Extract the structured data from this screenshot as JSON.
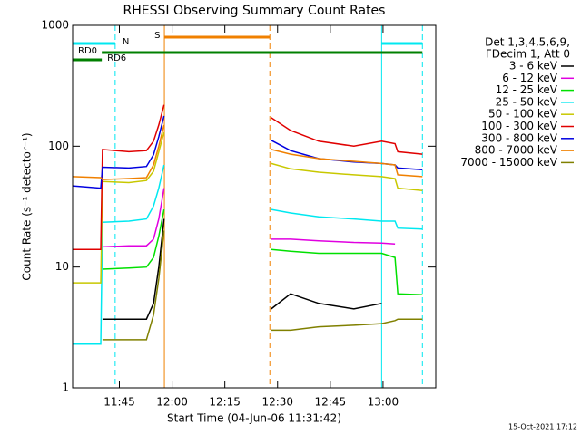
{
  "chart_data": {
    "type": "line",
    "title": "RHESSI Observing Summary Count Rates",
    "xlabel": "Start Time (04-Jun-06 11:31:42)",
    "ylabel": "Count Rate (s⁻¹ detector⁻¹)",
    "legend_header": [
      "Det 1,3,4,5,6,9,",
      "FDecim 1, Att 0"
    ],
    "footer": "15-Oct-2021 17:12",
    "log_y": true,
    "xlim": [
      0,
      103.3
    ],
    "ylim": [
      1,
      1000
    ],
    "xticks": [
      {
        "value": 13.3,
        "label": "11:45"
      },
      {
        "value": 28.3,
        "label": "12:00"
      },
      {
        "value": 43.3,
        "label": "12:15"
      },
      {
        "value": 58.3,
        "label": "12:30"
      },
      {
        "value": 73.3,
        "label": "12:45"
      },
      {
        "value": 88.3,
        "label": "13:00"
      }
    ],
    "yticks": [
      1,
      10,
      100,
      1000
    ],
    "x": [
      0,
      8,
      8.5,
      16,
      21,
      23,
      24.5,
      26,
      40,
      56.5,
      62,
      70,
      80,
      87.9,
      91.7,
      92.5,
      99.5
    ],
    "series": [
      {
        "name": "3 - 6 keV",
        "color": "#000000",
        "values": [
          null,
          null,
          3.7,
          3.7,
          3.7,
          5,
          10,
          25,
          null,
          4.5,
          6,
          5,
          4.5,
          5,
          null,
          null,
          null
        ]
      },
      {
        "name": "6 - 12 keV",
        "color": "#e000e0",
        "values": [
          null,
          null,
          14.7,
          15,
          15,
          17,
          25,
          45,
          null,
          17,
          17,
          16.5,
          16,
          15.8,
          15.5,
          null,
          null
        ]
      },
      {
        "name": "12 - 25 keV",
        "color": "#00e000",
        "values": [
          null,
          null,
          9.6,
          9.8,
          10,
          12,
          18,
          30,
          null,
          14,
          13.5,
          13,
          13,
          13,
          12,
          6,
          5.9
        ]
      },
      {
        "name": "25 - 50 keV",
        "color": "#00e8f0",
        "values": [
          2.3,
          2.3,
          23.5,
          24,
          25,
          32,
          45,
          70,
          null,
          30,
          28,
          26,
          25,
          24,
          24,
          21,
          20.6
        ]
      },
      {
        "name": "50 - 100 keV",
        "color": "#c8c800",
        "values": [
          7.4,
          7.4,
          51,
          50,
          52,
          62,
          90,
          130,
          null,
          72,
          65,
          61,
          58,
          56,
          54,
          45,
          43
        ]
      },
      {
        "name": "100 - 300 keV",
        "color": "#e00000",
        "values": [
          14,
          14,
          94,
          90,
          92,
          110,
          150,
          220,
          null,
          172,
          135,
          110,
          100,
          110,
          105,
          90,
          86
        ]
      },
      {
        "name": "300 - 800 keV",
        "color": "#0000e0",
        "values": [
          47,
          45,
          67,
          66,
          68,
          85,
          120,
          178,
          null,
          112,
          92,
          79,
          74,
          72,
          70,
          66,
          64
        ]
      },
      {
        "name": "800 - 7000 keV",
        "color": "#f08000",
        "values": [
          56,
          55,
          53,
          54,
          55,
          70,
          100,
          150,
          null,
          94,
          86,
          79,
          75,
          72,
          70,
          58,
          56
        ]
      },
      {
        "name": "7000 - 15000 keV",
        "color": "#808000",
        "values": [
          null,
          null,
          2.5,
          2.5,
          2.5,
          4,
          8,
          20,
          null,
          3,
          3,
          3.2,
          3.3,
          3.4,
          3.6,
          3.7,
          3.7
        ]
      }
    ],
    "flags": [
      {
        "label": "S",
        "color": "#f08000",
        "intervals": [
          [
            26.1,
            56.1
          ]
        ]
      },
      {
        "label": "N",
        "color": "#00e8f0",
        "intervals": [
          [
            0,
            12.1
          ],
          [
            87.9,
            99.5
          ]
        ]
      },
      {
        "label": "RD0",
        "color": "#008000",
        "intervals": [
          [
            8.3,
            99.5
          ]
        ]
      },
      {
        "label": "RD6",
        "color": "#008000",
        "intervals": [
          [
            0,
            8.3
          ]
        ]
      }
    ],
    "vlines": [
      {
        "x": 0,
        "color": "#00e8f0",
        "dashed": false
      },
      {
        "x": 12.1,
        "color": "#00e8f0",
        "dashed": true
      },
      {
        "x": 26.1,
        "color": "#f08000",
        "dashed": false
      },
      {
        "x": 56.1,
        "color": "#f08000",
        "dashed": true
      },
      {
        "x": 87.9,
        "color": "#00e8f0",
        "dashed": false
      },
      {
        "x": 99.5,
        "color": "#00e8f0",
        "dashed": true
      }
    ]
  }
}
